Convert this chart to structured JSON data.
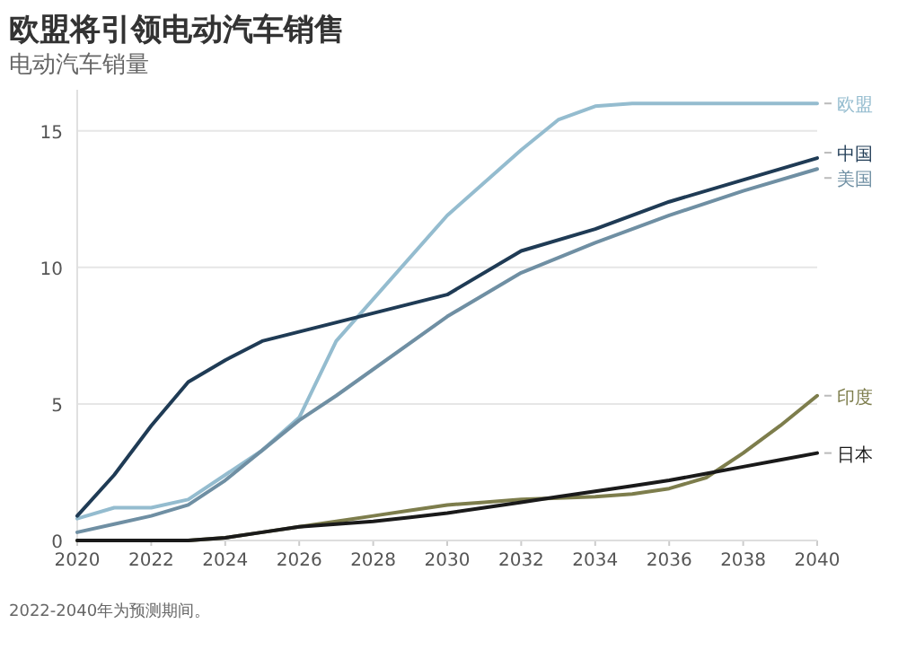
{
  "chart_data": {
    "type": "line",
    "title": "欧盟将引领电动汽车销售",
    "subtitle": "电动汽车销量",
    "annotations": [
      "2022-2040年为预测期间。"
    ],
    "x": [
      2020,
      2021,
      2022,
      2023,
      2024,
      2025,
      2026,
      2027,
      2028,
      2029,
      2030,
      2031,
      2032,
      2033,
      2034,
      2035,
      2036,
      2037,
      2038,
      2039,
      2040
    ],
    "series": [
      {
        "name": "欧盟",
        "color": "#94bccf",
        "values": [
          0.8,
          1.2,
          1.2,
          1.5,
          2.4,
          3.3,
          4.5,
          7.3,
          null,
          null,
          11.9,
          13.1,
          14.3,
          15.4,
          15.9,
          16,
          16,
          16,
          16,
          16,
          16
        ]
      },
      {
        "name": "中国",
        "color": "#1f3b55",
        "values": [
          0.9,
          2.4,
          4.2,
          5.8,
          6.6,
          7.3,
          null,
          null,
          null,
          null,
          9.0,
          null,
          10.6,
          null,
          11.4,
          null,
          12.4,
          null,
          13.2,
          null,
          14.0
        ]
      },
      {
        "name": "美国",
        "color": "#6f8fa3",
        "values": [
          0.3,
          0.6,
          0.9,
          1.3,
          2.2,
          3.3,
          4.4,
          5.3,
          null,
          null,
          8.2,
          null,
          9.8,
          null,
          10.9,
          null,
          11.9,
          null,
          12.8,
          null,
          13.6
        ]
      },
      {
        "name": "印度",
        "color": "#7d7d4c",
        "values": [
          0,
          0,
          0,
          0,
          0.1,
          0.3,
          0.5,
          0.7,
          0.9,
          1.1,
          1.3,
          1.4,
          1.5,
          1.55,
          1.6,
          1.7,
          1.9,
          2.3,
          3.2,
          4.2,
          5.3
        ]
      },
      {
        "name": "日本",
        "color": "#1a1a1a",
        "values": [
          0,
          0,
          0,
          0,
          0.1,
          0.3,
          0.5,
          0.6,
          0.7,
          0.85,
          1.0,
          1.2,
          1.4,
          1.6,
          1.8,
          2.0,
          2.2,
          2.45,
          2.7,
          2.95,
          3.2
        ]
      }
    ],
    "xlim": [
      2020,
      2040
    ],
    "ylim": [
      0,
      16.5
    ],
    "xticks": [
      2020,
      2022,
      2024,
      2026,
      2028,
      2030,
      2032,
      2034,
      2036,
      2038,
      2040
    ],
    "yticks": [
      0,
      5,
      10,
      15
    ],
    "grid": "y",
    "marker": "none",
    "line_style": "solid"
  }
}
